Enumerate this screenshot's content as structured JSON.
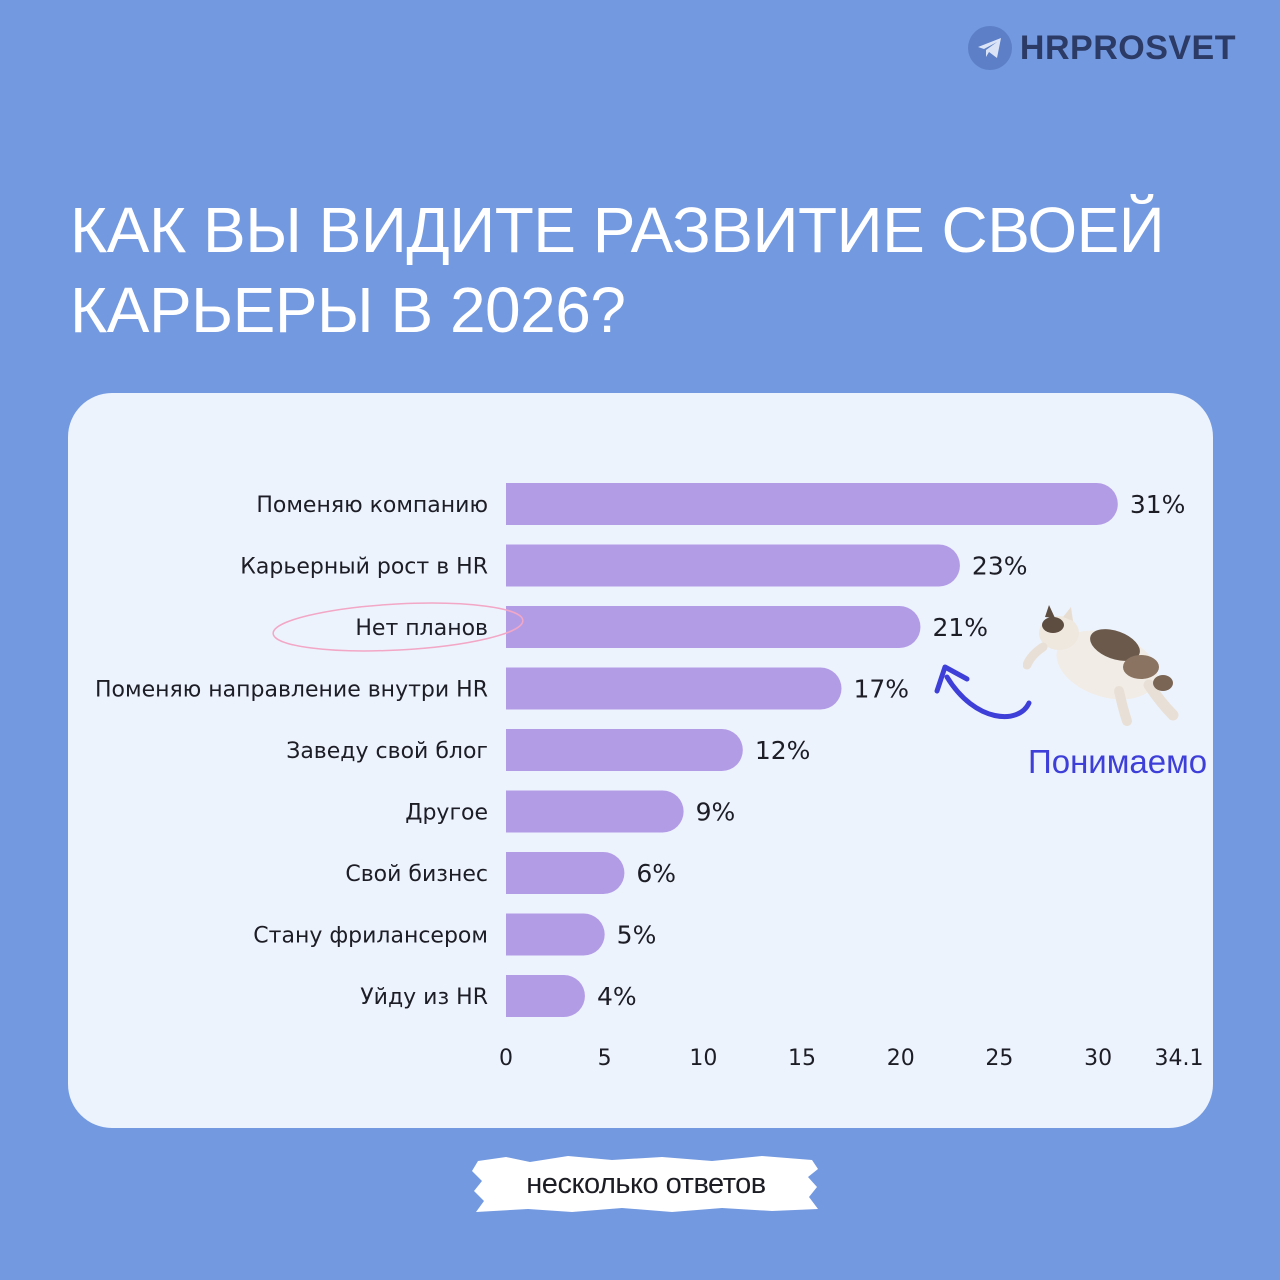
{
  "brand": {
    "name": "HRPROSVET",
    "icon": "telegram-icon"
  },
  "title_line1": "КАК ВЫ ВИДИТЕ РАЗВИТИЕ СВОЕЙ",
  "title_line2": "КАРЬЕРЫ В 2026?",
  "annotation": {
    "text": "Понимаемо",
    "image": "flying-cat"
  },
  "footnote": "несколько ответов",
  "colors": {
    "background": "#7399e0",
    "card": "#edf3fd",
    "bar": "#b39ce6",
    "accent": "#3d3fd8",
    "highlight_circle": "#f2a7c6"
  },
  "chart_data": {
    "type": "bar",
    "orientation": "horizontal",
    "title": "КАК ВЫ ВИДИТЕ РАЗВИТИЕ СВОЕЙ КАРЬЕРЫ В 2026?",
    "categories": [
      "Поменяю компанию",
      "Карьерный рост в HR",
      "Нет планов",
      "Поменяю направление внутри HR",
      "Заведу свой блог",
      "Другое",
      "Свой бизнес",
      "Стану фрилансером",
      "Уйду из HR"
    ],
    "values": [
      31,
      23,
      21,
      17,
      12,
      9,
      6,
      5,
      4
    ],
    "value_labels": [
      "31%",
      "23%",
      "21%",
      "17%",
      "12%",
      "9%",
      "6%",
      "5%",
      "4%"
    ],
    "highlighted_category": "Нет планов",
    "xlim": [
      0,
      34.1
    ],
    "xticks": [
      "0",
      "5",
      "10",
      "15",
      "20",
      "25",
      "30",
      "34.1"
    ],
    "xtick_values": [
      0,
      5,
      10,
      15,
      20,
      25,
      30,
      34.1
    ],
    "grid": false
  }
}
